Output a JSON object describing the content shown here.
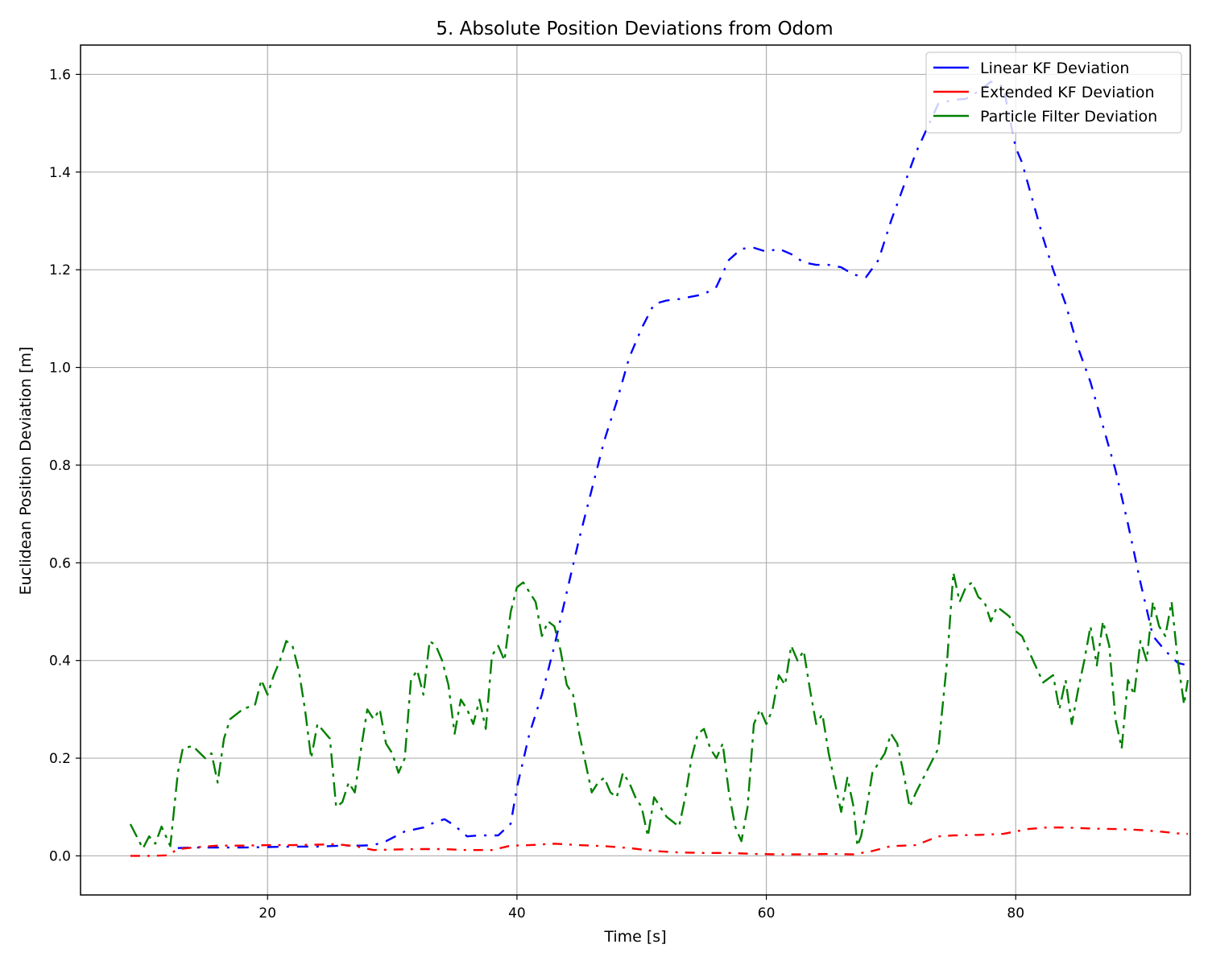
{
  "chart_data": {
    "type": "line",
    "title": "5. Absolute Position Deviations from Odom",
    "xlabel": "Time [s]",
    "ylabel": "Euclidean Position Deviation [m]",
    "xlim": [
      5,
      94
    ],
    "ylim": [
      -0.08,
      1.66
    ],
    "xticks": [
      20,
      40,
      60,
      80
    ],
    "yticks": [
      0.0,
      0.2,
      0.4,
      0.6,
      0.8,
      1.0,
      1.2,
      1.4,
      1.6
    ],
    "grid": true,
    "legend_position": "top-right",
    "series": [
      {
        "name": "Linear KF Deviation",
        "color": "#0000ff",
        "points": [
          [
            12.8,
            0.016
          ],
          [
            14,
            0.017
          ],
          [
            16,
            0.017
          ],
          [
            18,
            0.017
          ],
          [
            20,
            0.018
          ],
          [
            22,
            0.019
          ],
          [
            24,
            0.019
          ],
          [
            26,
            0.021
          ],
          [
            27.5,
            0.021
          ],
          [
            28.5,
            0.022
          ],
          [
            29.5,
            0.03
          ],
          [
            31,
            0.05
          ],
          [
            32.5,
            0.058
          ],
          [
            33.5,
            0.07
          ],
          [
            34.2,
            0.075
          ],
          [
            35,
            0.062
          ],
          [
            36,
            0.04
          ],
          [
            37,
            0.042
          ],
          [
            38.5,
            0.042
          ],
          [
            39.5,
            0.066
          ],
          [
            40,
            0.14
          ],
          [
            41,
            0.25
          ],
          [
            42,
            0.33
          ],
          [
            43,
            0.43
          ],
          [
            44,
            0.54
          ],
          [
            45,
            0.65
          ],
          [
            46,
            0.75
          ],
          [
            47,
            0.85
          ],
          [
            48,
            0.93
          ],
          [
            49,
            1.02
          ],
          [
            50,
            1.08
          ],
          [
            51,
            1.13
          ],
          [
            52,
            1.137
          ],
          [
            53,
            1.14
          ],
          [
            54,
            1.145
          ],
          [
            55,
            1.15
          ],
          [
            56,
            1.165
          ],
          [
            57,
            1.22
          ],
          [
            58,
            1.243
          ],
          [
            59,
            1.245
          ],
          [
            60,
            1.237
          ],
          [
            61,
            1.243
          ],
          [
            62,
            1.232
          ],
          [
            63,
            1.215
          ],
          [
            64,
            1.21
          ],
          [
            65,
            1.21
          ],
          [
            66,
            1.205
          ],
          [
            67,
            1.19
          ],
          [
            68,
            1.185
          ],
          [
            69,
            1.22
          ],
          [
            70,
            1.3
          ],
          [
            71,
            1.37
          ],
          [
            72,
            1.44
          ],
          [
            73.8,
            1.54
          ],
          [
            75,
            1.548
          ],
          [
            76,
            1.55
          ],
          [
            77,
            1.565
          ],
          [
            78,
            1.585
          ],
          [
            79,
            1.575
          ],
          [
            80,
            1.45
          ],
          [
            80.5,
            1.42
          ],
          [
            82.2,
            1.265
          ],
          [
            83,
            1.2
          ],
          [
            84,
            1.13
          ],
          [
            85,
            1.04
          ],
          [
            86,
            0.97
          ],
          [
            87,
            0.88
          ],
          [
            88,
            0.79
          ],
          [
            89,
            0.68
          ],
          [
            90,
            0.56
          ],
          [
            91,
            0.45
          ],
          [
            92,
            0.42
          ],
          [
            93,
            0.395
          ],
          [
            93.8,
            0.39
          ]
        ]
      },
      {
        "name": "Extended KF Deviation",
        "color": "#ff0000",
        "points": [
          [
            9,
            0.0
          ],
          [
            10.5,
            0.0
          ],
          [
            12,
            0.001
          ],
          [
            12.8,
            0.014
          ],
          [
            14,
            0.017
          ],
          [
            16,
            0.021
          ],
          [
            18,
            0.021
          ],
          [
            20,
            0.022
          ],
          [
            22,
            0.022
          ],
          [
            24,
            0.023
          ],
          [
            25.5,
            0.024
          ],
          [
            27,
            0.02
          ],
          [
            28.5,
            0.012
          ],
          [
            30,
            0.013
          ],
          [
            32,
            0.014
          ],
          [
            34,
            0.014
          ],
          [
            36,
            0.012
          ],
          [
            38,
            0.012
          ],
          [
            39.5,
            0.021
          ],
          [
            41,
            0.022
          ],
          [
            43,
            0.025
          ],
          [
            45,
            0.022
          ],
          [
            47,
            0.02
          ],
          [
            49,
            0.016
          ],
          [
            51,
            0.01
          ],
          [
            53,
            0.007
          ],
          [
            55,
            0.006
          ],
          [
            57,
            0.006
          ],
          [
            59,
            0.004
          ],
          [
            61,
            0.003
          ],
          [
            63,
            0.003
          ],
          [
            65,
            0.004
          ],
          [
            67,
            0.003
          ],
          [
            68.5,
            0.01
          ],
          [
            70,
            0.02
          ],
          [
            71,
            0.021
          ],
          [
            72,
            0.022
          ],
          [
            73.8,
            0.04
          ],
          [
            75,
            0.042
          ],
          [
            77,
            0.043
          ],
          [
            79,
            0.045
          ],
          [
            81,
            0.055
          ],
          [
            82.5,
            0.058
          ],
          [
            84,
            0.058
          ],
          [
            86,
            0.056
          ],
          [
            88,
            0.055
          ],
          [
            90,
            0.053
          ],
          [
            91.5,
            0.05
          ],
          [
            93,
            0.046
          ],
          [
            93.8,
            0.045
          ]
        ]
      },
      {
        "name": "Particle Filter Deviation",
        "color": "#008000",
        "points": [
          [
            9,
            0.065
          ],
          [
            9.5,
            0.04
          ],
          [
            10,
            0.015
          ],
          [
            10.5,
            0.04
          ],
          [
            11,
            0.025
          ],
          [
            11.5,
            0.06
          ],
          [
            12.2,
            0.02
          ],
          [
            12.8,
            0.17
          ],
          [
            13.2,
            0.22
          ],
          [
            14,
            0.225
          ],
          [
            15,
            0.2
          ],
          [
            15.5,
            0.21
          ],
          [
            16,
            0.15
          ],
          [
            16.5,
            0.24
          ],
          [
            17,
            0.28
          ],
          [
            18,
            0.3
          ],
          [
            19,
            0.31
          ],
          [
            19.5,
            0.36
          ],
          [
            20,
            0.33
          ],
          [
            20.5,
            0.37
          ],
          [
            21,
            0.4
          ],
          [
            21.5,
            0.44
          ],
          [
            22,
            0.43
          ],
          [
            22.5,
            0.38
          ],
          [
            23,
            0.3
          ],
          [
            23.5,
            0.2
          ],
          [
            24,
            0.27
          ],
          [
            25,
            0.24
          ],
          [
            25.5,
            0.1
          ],
          [
            26,
            0.11
          ],
          [
            26.5,
            0.15
          ],
          [
            27,
            0.13
          ],
          [
            27.5,
            0.22
          ],
          [
            28,
            0.3
          ],
          [
            28.5,
            0.28
          ],
          [
            29,
            0.3
          ],
          [
            29.5,
            0.23
          ],
          [
            30,
            0.21
          ],
          [
            30.5,
            0.17
          ],
          [
            31,
            0.2
          ],
          [
            31.5,
            0.36
          ],
          [
            32,
            0.38
          ],
          [
            32.5,
            0.33
          ],
          [
            33,
            0.44
          ],
          [
            33.5,
            0.43
          ],
          [
            34,
            0.4
          ],
          [
            34.5,
            0.35
          ],
          [
            35,
            0.25
          ],
          [
            35.5,
            0.32
          ],
          [
            36,
            0.3
          ],
          [
            36.5,
            0.27
          ],
          [
            37,
            0.32
          ],
          [
            37.5,
            0.26
          ],
          [
            38,
            0.41
          ],
          [
            38.5,
            0.43
          ],
          [
            39,
            0.4
          ],
          [
            39.5,
            0.5
          ],
          [
            40,
            0.55
          ],
          [
            40.5,
            0.56
          ],
          [
            41,
            0.54
          ],
          [
            41.5,
            0.52
          ],
          [
            42,
            0.45
          ],
          [
            42.5,
            0.48
          ],
          [
            43,
            0.47
          ],
          [
            43.5,
            0.42
          ],
          [
            44,
            0.35
          ],
          [
            44.5,
            0.33
          ],
          [
            45,
            0.25
          ],
          [
            45.5,
            0.19
          ],
          [
            46,
            0.13
          ],
          [
            46.5,
            0.15
          ],
          [
            47,
            0.16
          ],
          [
            47.5,
            0.13
          ],
          [
            48,
            0.12
          ],
          [
            48.5,
            0.17
          ],
          [
            49,
            0.15
          ],
          [
            49.5,
            0.12
          ],
          [
            50,
            0.1
          ],
          [
            50.5,
            0.04
          ],
          [
            51,
            0.12
          ],
          [
            51.5,
            0.1
          ],
          [
            52,
            0.08
          ],
          [
            53,
            0.06
          ],
          [
            53.5,
            0.12
          ],
          [
            54,
            0.2
          ],
          [
            54.5,
            0.25
          ],
          [
            55,
            0.26
          ],
          [
            55.5,
            0.22
          ],
          [
            56,
            0.2
          ],
          [
            56.5,
            0.23
          ],
          [
            57,
            0.13
          ],
          [
            57.5,
            0.06
          ],
          [
            58,
            0.03
          ],
          [
            58.5,
            0.1
          ],
          [
            59,
            0.27
          ],
          [
            59.5,
            0.3
          ],
          [
            60,
            0.27
          ],
          [
            60.5,
            0.3
          ],
          [
            61,
            0.37
          ],
          [
            61.5,
            0.35
          ],
          [
            62,
            0.43
          ],
          [
            62.5,
            0.4
          ],
          [
            63,
            0.42
          ],
          [
            63.5,
            0.34
          ],
          [
            64,
            0.27
          ],
          [
            64.5,
            0.29
          ],
          [
            65,
            0.21
          ],
          [
            65.5,
            0.15
          ],
          [
            66,
            0.09
          ],
          [
            66.5,
            0.16
          ],
          [
            67,
            0.1
          ],
          [
            67.3,
            0.02
          ],
          [
            67.6,
            0.04
          ],
          [
            68,
            0.09
          ],
          [
            68.5,
            0.17
          ],
          [
            69,
            0.19
          ],
          [
            69.5,
            0.21
          ],
          [
            70,
            0.25
          ],
          [
            70.5,
            0.23
          ],
          [
            71,
            0.17
          ],
          [
            71.5,
            0.1
          ],
          [
            72,
            0.13
          ],
          [
            73.8,
            0.22
          ],
          [
            74.5,
            0.4
          ],
          [
            75,
            0.58
          ],
          [
            75.5,
            0.52
          ],
          [
            76,
            0.55
          ],
          [
            76.5,
            0.56
          ],
          [
            77,
            0.53
          ],
          [
            77.5,
            0.52
          ],
          [
            78,
            0.48
          ],
          [
            78.5,
            0.51
          ],
          [
            79,
            0.5
          ],
          [
            79.5,
            0.49
          ],
          [
            80,
            0.46
          ],
          [
            80.5,
            0.45
          ],
          [
            82.2,
            0.355
          ],
          [
            83,
            0.37
          ],
          [
            83.5,
            0.3
          ],
          [
            84,
            0.36
          ],
          [
            84.5,
            0.27
          ],
          [
            85,
            0.34
          ],
          [
            85.5,
            0.4
          ],
          [
            86,
            0.47
          ],
          [
            86.5,
            0.39
          ],
          [
            87,
            0.48
          ],
          [
            87.5,
            0.43
          ],
          [
            88,
            0.28
          ],
          [
            88.5,
            0.22
          ],
          [
            89,
            0.36
          ],
          [
            89.5,
            0.33
          ],
          [
            90,
            0.44
          ],
          [
            90.5,
            0.4
          ],
          [
            91,
            0.52
          ],
          [
            91.5,
            0.47
          ],
          [
            92,
            0.45
          ],
          [
            92.5,
            0.52
          ],
          [
            93,
            0.4
          ],
          [
            93.5,
            0.31
          ],
          [
            93.8,
            0.36
          ]
        ]
      }
    ]
  }
}
